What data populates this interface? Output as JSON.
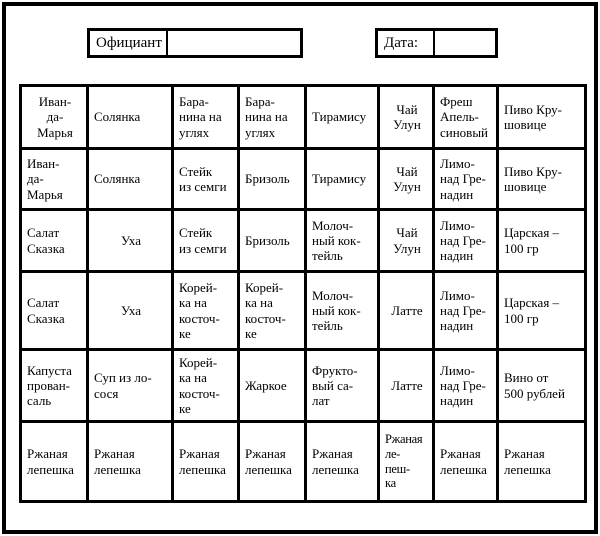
{
  "form": {
    "waiter": {
      "label": "Официант",
      "value": ""
    },
    "date": {
      "label": "Дата:",
      "value": ""
    }
  },
  "colors": {
    "border": "#000000",
    "background": "#ffffff",
    "text": "#000000"
  },
  "table": {
    "columns": 8,
    "rows": [
      [
        "Иван-\nда-\nМарья",
        "Солянка",
        "Бара-\nнина на\nуглях",
        "Бара-\nнина на\nуглях",
        "Тирамису",
        "Чай\nУлун",
        "Фреш\nАпель-\nсиновый",
        "Пиво Кру-\nшовице"
      ],
      [
        "Иван-\nда-\nМарья",
        "Солянка",
        "Стейк\nиз семги",
        "Бризоль",
        "Тирамису",
        "Чай\nУлун",
        "Лимо-\nнад Гре-\nнадин",
        "Пиво Кру-\nшовице"
      ],
      [
        "Салат\nСказка",
        "Уха",
        "Стейк\nиз семги",
        "Бризоль",
        "Молоч-\nный кок-\nтейль",
        "Чай\nУлун",
        "Лимо-\nнад Гре-\nнадин",
        "Царская –\n100 гр"
      ],
      [
        "Салат\nСказка",
        "Уха",
        "Корей-\nка на\nкосточ-\nке",
        "Корей-\nка на\nкосточ-\nке",
        "Молоч-\nный кок-\nтейль",
        "Латте",
        "Лимо-\nнад Гре-\nнадин",
        "Царская –\n100 гр"
      ],
      [
        "Капуста\nпрован-\nсаль",
        "Суп из ло-\nсося",
        "Корей-\nка на\nкосточ-\nке",
        "Жаркое",
        "Фрукто-\nвый са-\nлат",
        "Латте",
        "Лимо-\nнад Гре-\nнадин",
        "Вино от\n500 рублей"
      ],
      [
        "Ржаная\nлепешка",
        "Ржаная\nлепешка",
        "Ржаная\nлепешка",
        "Ржаная\nлепешка",
        "Ржаная\nлепешка",
        "Ржаная\nле-\nпеш-\nка",
        "Ржаная\nлепешка",
        "Ржаная\nлепешка"
      ]
    ]
  }
}
